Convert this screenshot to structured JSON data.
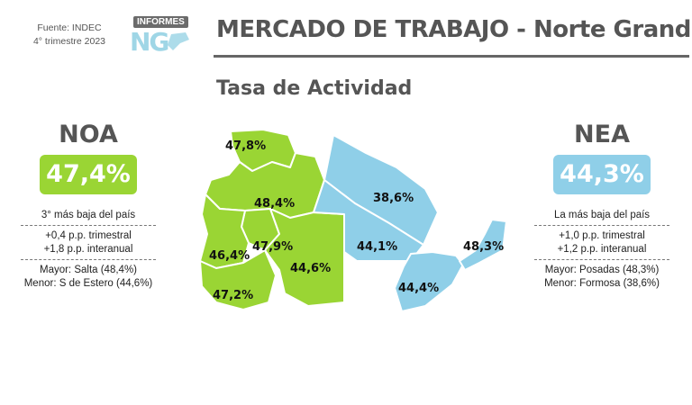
{
  "header": {
    "source_line1": "Fuente: INDEC",
    "source_line2": "4° trimestre 2023",
    "logo_word": "INFORMES",
    "logo_letters": "NG",
    "title": "MERCADO DE TRABAJO - Norte Grande",
    "subtitle": "Tasa de Actividad"
  },
  "colors": {
    "noa": "#9ad534",
    "nea": "#8fcfe8",
    "text": "#555555"
  },
  "noa": {
    "name": "NOA",
    "rate": "47,4%",
    "rank": "3° más baja del país",
    "quarterly": "+0,4 p.p. trimestral",
    "yearly": "+1,8 p.p. interanual",
    "max": "Mayor: Salta (48,4%)",
    "min": "Menor: S de Estero (44,6%)"
  },
  "nea": {
    "name": "NEA",
    "rate": "44,3%",
    "rank": "La más baja del país",
    "quarterly": "+1,0 p.p. trimestral",
    "yearly": "+1,2 p.p. interanual",
    "max": "Mayor: Posadas (48,3%)",
    "min": "Menor: Formosa (38,6%)"
  },
  "map": {
    "jujuy": "47,8%",
    "salta": "48,4%",
    "tucuman": "47,9%",
    "catamarca": "46,4%",
    "la_rioja": "47,2%",
    "santiago": "44,6%",
    "formosa": "38,6%",
    "chaco": "44,1%",
    "corrientes": "44,4%",
    "misiones": "48,3%"
  }
}
